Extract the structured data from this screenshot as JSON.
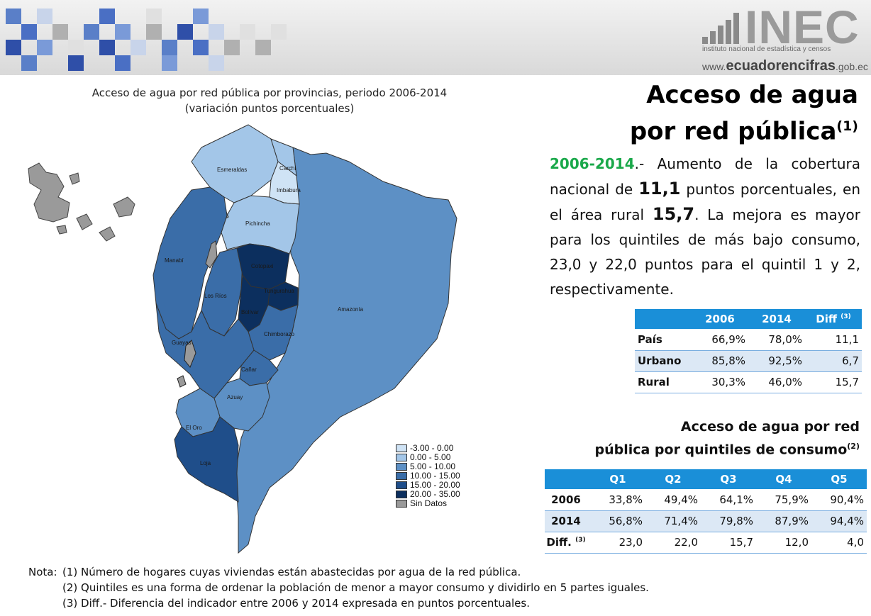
{
  "banner": {
    "logo_word": "INEC",
    "logo_subtitle": "instituto nacional de estadística y censos",
    "url_prefix": "www.",
    "url_main": "ecuadorencifras",
    "url_suffix": ".gob.ec"
  },
  "map": {
    "title_line1": "Acceso de agua por red pública por provincias, periodo 2006-2014",
    "title_line2": "(variación puntos porcentuales)",
    "colors": {
      "c_neg": "#cfe3f5",
      "c0_5": "#a3c6e8",
      "c5_10": "#5d90c5",
      "c10_15": "#3a6da8",
      "c15_20": "#1f4e8a",
      "c20_35": "#0c2f5e",
      "no_data": "#9a9a9a"
    },
    "provinces": [
      {
        "name": "Esmeraldas",
        "class": "0.00 - 5.00"
      },
      {
        "name": "Carchi",
        "class": "0.00 - 5.00"
      },
      {
        "name": "Imbabura",
        "class": "-3.00 - 0.00"
      },
      {
        "name": "Pichincha",
        "class": "0.00 - 5.00"
      },
      {
        "name": "Manabí",
        "class": "10.00 - 15.00"
      },
      {
        "name": "Cotopaxi",
        "class": "20.00 - 35.00"
      },
      {
        "name": "Los Ríos",
        "class": "10.00 - 15.00"
      },
      {
        "name": "Tungurahua",
        "class": "20.00 - 35.00"
      },
      {
        "name": "Bolívar",
        "class": "20.00 - 35.00"
      },
      {
        "name": "Amazonía",
        "class": "5.00 - 10.00"
      },
      {
        "name": "Chimborazo",
        "class": "10.00 - 15.00"
      },
      {
        "name": "Guayas",
        "class": "10.00 - 15.00"
      },
      {
        "name": "Cañar",
        "class": "10.00 - 15.00"
      },
      {
        "name": "Azuay",
        "class": "5.00 - 10.00"
      },
      {
        "name": "El Oro",
        "class": "5.00 - 10.00"
      },
      {
        "name": "Loja",
        "class": "15.00 - 20.00"
      }
    ],
    "legend": [
      {
        "label": "-3.00 - 0.00",
        "color": "#cfe3f5"
      },
      {
        "label": "0.00 - 5.00",
        "color": "#a3c6e8"
      },
      {
        "label": "5.00 - 10.00",
        "color": "#5d90c5"
      },
      {
        "label": "10.00 - 15.00",
        "color": "#3a6da8"
      },
      {
        "label": "15.00 - 20.00",
        "color": "#1f4e8a"
      },
      {
        "label": "20.00 - 35.00",
        "color": "#0c2f5e"
      },
      {
        "label": "Sin Datos",
        "color": "#9a9a9a"
      }
    ]
  },
  "right": {
    "title_line1": "Acceso de agua",
    "title_line2": "por red pública",
    "title_sup": "(1)",
    "summary": {
      "period": "2006-2014",
      "t1": ".- Aumento de la cobertura nacional de ",
      "v1": "11,1",
      "t2": " puntos porcentuales, en el área rural ",
      "v2": "15,7",
      "t3": ". La mejora es mayor para los quintiles de más bajo consumo, 23,0 y 22,0 puntos para el quintil 1 y 2, respectivamente."
    },
    "area_table": {
      "headers": [
        "",
        "2006",
        "2014",
        "Diff"
      ],
      "header_sup": "(3)",
      "rows": [
        {
          "label": "País",
          "v2006": "66,9%",
          "v2014": "78,0%",
          "diff": "11,1"
        },
        {
          "label": "Urbano",
          "v2006": "85,8%",
          "v2014": "92,5%",
          "diff": "6,7"
        },
        {
          "label": "Rural",
          "v2006": "30,3%",
          "v2014": "46,0%",
          "diff": "15,7"
        }
      ]
    },
    "quint_title_line1": "Acceso de agua por red",
    "quint_title_line2": "pública por quintiles de consumo",
    "quint_title_sup": "(2)",
    "quint_table": {
      "headers": [
        "",
        "Q1",
        "Q2",
        "Q3",
        "Q4",
        "Q5"
      ],
      "rows": [
        {
          "label": "2006",
          "sup": "",
          "values": [
            "33,8%",
            "49,4%",
            "64,1%",
            "75,9%",
            "90,4%"
          ]
        },
        {
          "label": "2014",
          "sup": "",
          "values": [
            "56,8%",
            "71,4%",
            "79,8%",
            "87,9%",
            "94,4%"
          ]
        },
        {
          "label": "Diff.",
          "sup": "(3)",
          "values": [
            "23,0",
            "22,0",
            "15,7",
            "12,0",
            "4,0"
          ]
        }
      ]
    }
  },
  "notes": {
    "label": "Nota:",
    "n1": "(1) Número de hogares cuyas viviendas están abastecidas por agua de la red pública.",
    "n2": "(2) Quintiles es una forma de ordenar la población de menor a mayor consumo y dividirlo en 5 partes iguales.",
    "n3": "(3) Diff.- Diferencia del indicador entre 2006 y 2014 expresada en puntos porcentuales."
  }
}
